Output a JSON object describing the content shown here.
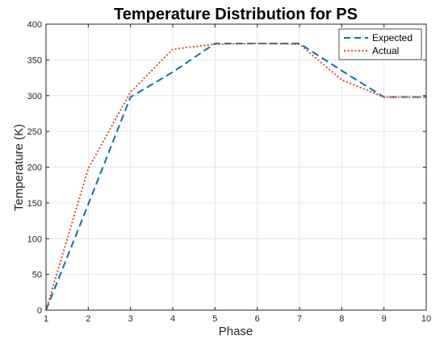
{
  "chart_data": {
    "type": "line",
    "title": "Temperature Distribution for PS",
    "xlabel": "Phase",
    "ylabel": "Temperature (K)",
    "xlim": [
      1,
      10
    ],
    "ylim": [
      0,
      400
    ],
    "x_ticks": [
      1,
      2,
      3,
      4,
      5,
      6,
      7,
      8,
      9,
      10
    ],
    "y_ticks": [
      0,
      50,
      100,
      150,
      200,
      250,
      300,
      350,
      400
    ],
    "grid": true,
    "legend_position": "top-right",
    "x": [
      1,
      2,
      3,
      4,
      5,
      6,
      7,
      8,
      9,
      10
    ],
    "series": [
      {
        "name": "Expected",
        "values": [
          0,
          148,
          298,
          333,
          373,
          373,
          373,
          335,
          298,
          298
        ],
        "color": "#0072BD",
        "style": "dashed"
      },
      {
        "name": "Actual",
        "values": [
          0,
          198,
          305,
          365,
          372,
          373,
          372,
          322,
          298,
          298
        ],
        "color": "#D95319",
        "style": "dotted"
      }
    ]
  }
}
